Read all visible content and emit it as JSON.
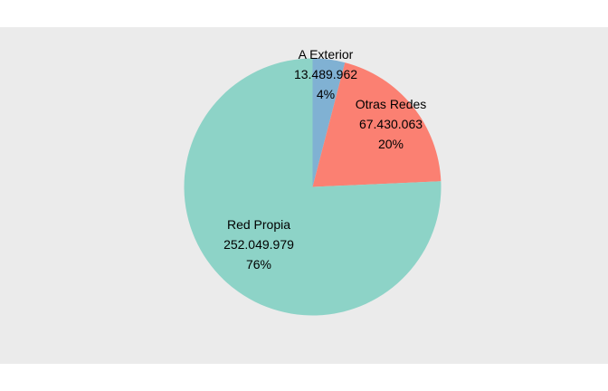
{
  "chart_data": {
    "type": "pie",
    "slices": [
      {
        "label": "A Exterior",
        "value": 13489962,
        "value_text": "13.489.962",
        "percent_text": "4%",
        "color": "#80b1d3"
      },
      {
        "label": "Otras Redes",
        "value": 67430063,
        "value_text": "67.430.063",
        "percent_text": "20%",
        "color": "#fb8072"
      },
      {
        "label": "Red Propia",
        "value": 252049979,
        "value_text": "252.049.979",
        "percent_text": "76%",
        "color": "#8dd3c7"
      }
    ],
    "start": "12 o'clock",
    "direction": "clockwise",
    "legend": "none",
    "panel_background": "#ebebeb"
  }
}
